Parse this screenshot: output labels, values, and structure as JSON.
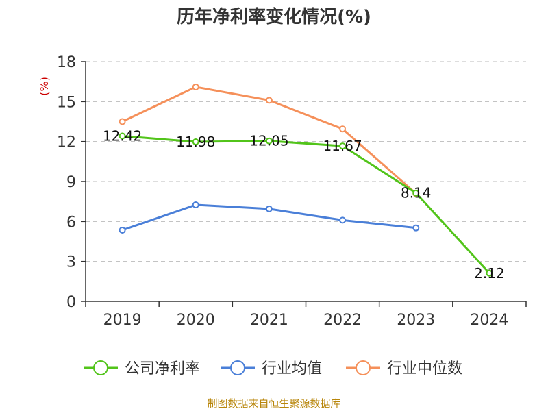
{
  "chart_data": {
    "type": "line",
    "title": "历年净利率变化情况(%)",
    "ylabel": "(%)",
    "xlabel": "",
    "categories": [
      "2019",
      "2020",
      "2021",
      "2022",
      "2023",
      "2024"
    ],
    "ylim": [
      0,
      18
    ],
    "yticks": [
      "0",
      "3",
      "6",
      "9",
      "12",
      "15",
      "18"
    ],
    "grid": true,
    "legend_position": "bottom",
    "series": [
      {
        "name": "公司净利率",
        "color": "#52c41a",
        "values": [
          12.42,
          11.98,
          12.05,
          11.67,
          8.14,
          2.12
        ],
        "labels": [
          "12.42",
          "11.98",
          "12.05",
          "11.67",
          "8.14",
          "2.12"
        ]
      },
      {
        "name": "行业均值",
        "color": "#4a7fd8",
        "values": [
          5.35,
          7.25,
          6.95,
          6.1,
          5.52,
          null
        ]
      },
      {
        "name": "行业中位数",
        "color": "#f5905a",
        "values": [
          13.5,
          16.1,
          15.1,
          12.95,
          8.1,
          null
        ]
      }
    ]
  },
  "source_text": "制图数据来自恒生聚源数据库"
}
